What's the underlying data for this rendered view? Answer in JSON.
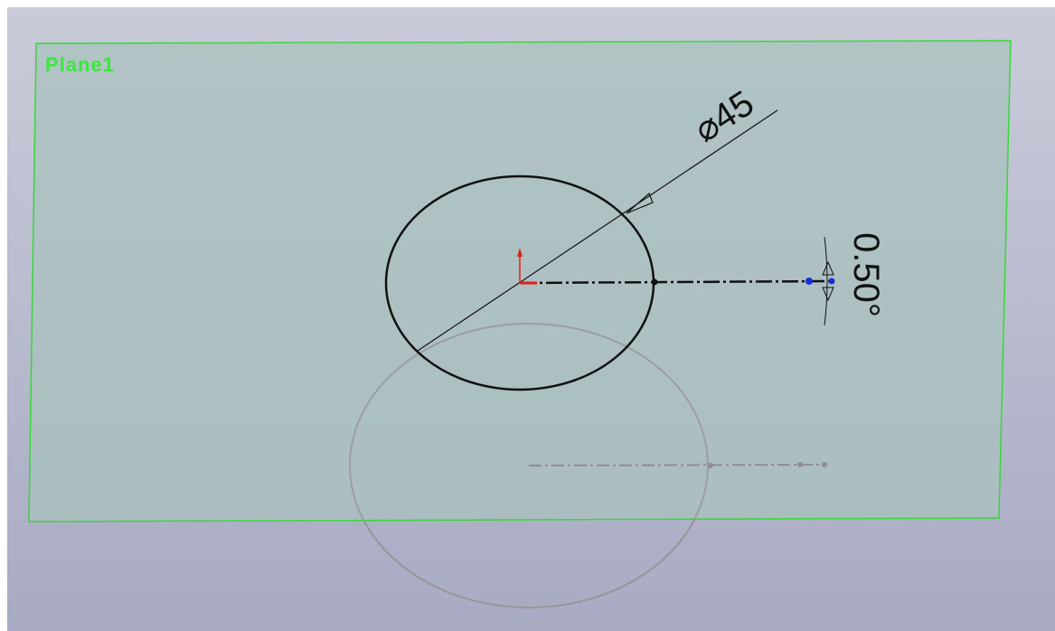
{
  "viewport": {
    "plane_label": "Plane1"
  },
  "sketch": {
    "diameter_dimension": "⌀45",
    "angle_dimension": "0.50°"
  }
}
